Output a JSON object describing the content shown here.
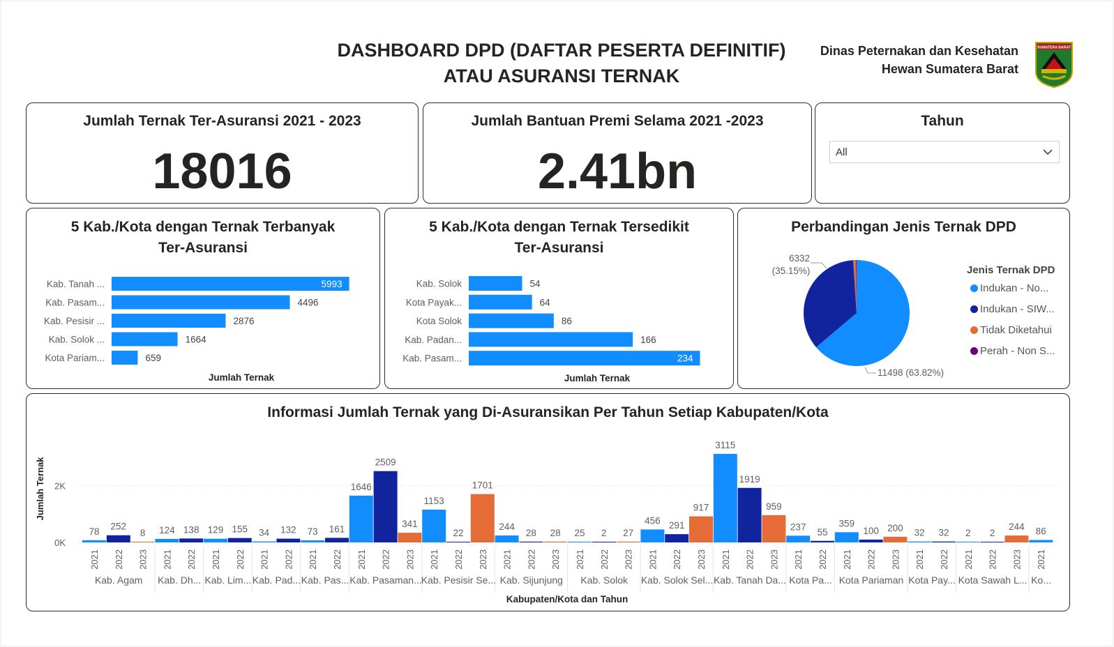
{
  "header": {
    "title_line1": "DASHBOARD DPD (DAFTAR PESERTA DEFINITIF)",
    "title_line2": "ATAU ASURANSI TERNAK",
    "org_line1": "Dinas Peternakan dan Kesehatan",
    "org_line2": "Hewan Sumatera Barat",
    "logo_text": "SUMATERA BARAT"
  },
  "kpis": {
    "ternak": {
      "title": "Jumlah Ternak Ter-Asuransi 2021 - 2023",
      "value": "18016"
    },
    "premi": {
      "title": "Jumlah Bantuan Premi Selama 2021 -2023",
      "value": "2.41bn"
    }
  },
  "slicer": {
    "title": "Tahun",
    "value": "All"
  },
  "colors": {
    "blue": "#118DFF",
    "navy": "#12239E",
    "orange": "#E66C37",
    "purple": "#6B007B"
  },
  "chart_data": [
    {
      "id": "top5",
      "type": "bar",
      "orientation": "horizontal",
      "title_line1": "5 Kab./Kota dengan Ternak Terbanyak",
      "title_line2": "Ter-Asuransi",
      "xlabel": "Jumlah Ternak",
      "categories": [
        "Kab. Tanah ...",
        "Kab. Pasam...",
        "Kab. Pesisir ...",
        "Kab. Solok ...",
        "Kota Pariam..."
      ],
      "values": [
        5993,
        4496,
        2876,
        1664,
        659
      ],
      "xlim": [
        0,
        6000
      ]
    },
    {
      "id": "bottom5",
      "type": "bar",
      "orientation": "horizontal",
      "title_line1": "5 Kab./Kota dengan Ternak Tersedikit",
      "title_line2": "Ter-Asuransi",
      "xlabel": "Jumlah Ternak",
      "categories": [
        "Kab. Solok",
        "Kota Payak...",
        "Kota Solok",
        "Kab. Padan...",
        "Kab. Pasam..."
      ],
      "values": [
        54,
        64,
        86,
        166,
        234
      ],
      "xlim": [
        0,
        240
      ]
    },
    {
      "id": "pie",
      "type": "pie",
      "title": "Perbandingan Jenis Ternak DPD",
      "legend_title": "Jenis Ternak DPD",
      "legend_position": "right",
      "slices": [
        {
          "name": "Indukan - No...",
          "value": 11498,
          "label": "11498 (63.82%)",
          "color": "#118DFF"
        },
        {
          "name": "Indukan - SIW...",
          "value": 6332,
          "label_value": "6332",
          "label_pct": "(35.15%)",
          "color": "#12239E"
        },
        {
          "name": "Tidak Diketahui",
          "value": 150,
          "color": "#E66C37"
        },
        {
          "name": "Perah - Non S...",
          "value": 36,
          "color": "#6B007B"
        }
      ]
    },
    {
      "id": "yearly",
      "type": "bar",
      "title": "Informasi Jumlah Ternak yang Di-Asuransikan Per Tahun Setiap Kabupaten/Kota",
      "xlabel": "Kabupaten/Kota dan Tahun",
      "ylabel": "Jumlah Ternak",
      "yticks": [
        {
          "v": 0,
          "label": "0K"
        },
        {
          "v": 2000,
          "label": "2K"
        }
      ],
      "ylim": [
        0,
        3115
      ],
      "grid": true,
      "groups": [
        {
          "name": "Kab. Agam",
          "bars": [
            {
              "year": "2021",
              "value": 78
            },
            {
              "year": "2022",
              "value": 252
            },
            {
              "year": "2023",
              "value": 8
            }
          ]
        },
        {
          "name": "Kab. Dh...",
          "bars": [
            {
              "year": "2021",
              "value": 124
            },
            {
              "year": "2022",
              "value": 138
            }
          ]
        },
        {
          "name": "Kab. Lim...",
          "bars": [
            {
              "year": "2021",
              "value": 129
            },
            {
              "year": "2022",
              "value": 155
            }
          ]
        },
        {
          "name": "Kab. Pad...",
          "bars": [
            {
              "year": "2021",
              "value": 34
            },
            {
              "year": "2022",
              "value": 132
            }
          ]
        },
        {
          "name": "Kab. Pas...",
          "bars": [
            {
              "year": "2021",
              "value": 73
            },
            {
              "year": "2022",
              "value": 161
            }
          ]
        },
        {
          "name": "Kab. Pasaman...",
          "bars": [
            {
              "year": "2021",
              "value": 1646
            },
            {
              "year": "2022",
              "value": 2509
            },
            {
              "year": "2023",
              "value": 341
            }
          ]
        },
        {
          "name": "Kab. Pesisir Se...",
          "bars": [
            {
              "year": "2021",
              "value": 1153
            },
            {
              "year": "2022",
              "value": 22
            },
            {
              "year": "2023",
              "value": 1701
            }
          ]
        },
        {
          "name": "Kab. Sijunjung",
          "bars": [
            {
              "year": "2021",
              "value": 244
            },
            {
              "year": "2022",
              "value": 28
            },
            {
              "year": "2023",
              "value": 28
            }
          ]
        },
        {
          "name": "Kab. Solok",
          "bars": [
            {
              "year": "2021",
              "value": 25
            },
            {
              "year": "2022",
              "value": 2
            },
            {
              "year": "2023",
              "value": 27
            }
          ]
        },
        {
          "name": "Kab. Solok Sel...",
          "bars": [
            {
              "year": "2021",
              "value": 456
            },
            {
              "year": "2022",
              "value": 291
            },
            {
              "year": "2023",
              "value": 917
            }
          ]
        },
        {
          "name": "Kab. Tanah Da...",
          "bars": [
            {
              "year": "2021",
              "value": 3115
            },
            {
              "year": "2022",
              "value": 1919
            },
            {
              "year": "2023",
              "value": 959
            }
          ]
        },
        {
          "name": "Kota Pa...",
          "bars": [
            {
              "year": "2021",
              "value": 237
            },
            {
              "year": "2022",
              "value": 55
            }
          ]
        },
        {
          "name": "Kota Pariaman",
          "bars": [
            {
              "year": "2021",
              "value": 359
            },
            {
              "year": "2022",
              "value": 100
            },
            {
              "year": "2023",
              "value": 200
            }
          ]
        },
        {
          "name": "Kota Pay...",
          "bars": [
            {
              "year": "2021",
              "value": 32
            },
            {
              "year": "2022",
              "value": 32
            }
          ]
        },
        {
          "name": "Kota Sawah L...",
          "bars": [
            {
              "year": "2021",
              "value": 2
            },
            {
              "year": "2022",
              "value": 2
            },
            {
              "year": "2023",
              "value": 244
            }
          ]
        },
        {
          "name": "Ko...",
          "bars": [
            {
              "year": "2021",
              "value": 86
            }
          ]
        }
      ]
    }
  ]
}
